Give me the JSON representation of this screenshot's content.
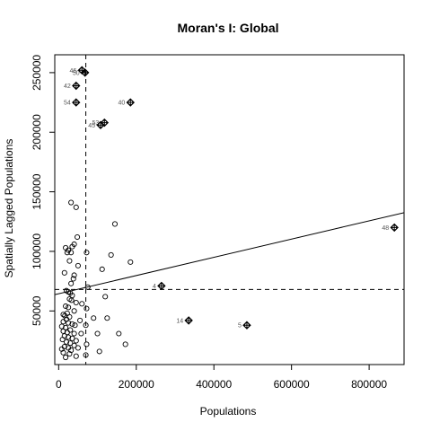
{
  "chart_data": {
    "type": "scatter",
    "title": "Moran's I: Global",
    "xlabel": "Populations",
    "ylabel": "Spatially Lagged Populations",
    "xlim": [
      -10000,
      890000
    ],
    "ylim": [
      5000,
      265000
    ],
    "xticks": [
      0,
      200000,
      400000,
      600000,
      800000
    ],
    "yticks": [
      50000,
      100000,
      150000,
      200000,
      250000
    ],
    "xtick_labels": [
      "0",
      "200000",
      "400000",
      "600000",
      "800000"
    ],
    "ytick_labels": [
      "50000",
      "100000",
      "150000",
      "200000",
      "250000"
    ],
    "mean_x": 70000,
    "mean_y": 68000,
    "regression": {
      "intercept": 64400,
      "slope": 0.0765
    },
    "points": [
      {
        "x": 32000,
        "y": 141000
      },
      {
        "x": 45000,
        "y": 137000
      },
      {
        "x": 145000,
        "y": 123000
      },
      {
        "x": 48000,
        "y": 112000
      },
      {
        "x": 18000,
        "y": 103000
      },
      {
        "x": 25000,
        "y": 101000
      },
      {
        "x": 35000,
        "y": 104000
      },
      {
        "x": 40000,
        "y": 106000
      },
      {
        "x": 22000,
        "y": 99000
      },
      {
        "x": 32000,
        "y": 99000
      },
      {
        "x": 72000,
        "y": 99000
      },
      {
        "x": 135000,
        "y": 97000
      },
      {
        "x": 28000,
        "y": 92000
      },
      {
        "x": 185000,
        "y": 91000
      },
      {
        "x": 50000,
        "y": 88000
      },
      {
        "x": 112000,
        "y": 85000
      },
      {
        "x": 15000,
        "y": 82000
      },
      {
        "x": 40000,
        "y": 80000
      },
      {
        "x": 38000,
        "y": 77000
      },
      {
        "x": 32000,
        "y": 73000
      },
      {
        "x": 75000,
        "y": 70000
      },
      {
        "x": 20000,
        "y": 67000
      },
      {
        "x": 25000,
        "y": 66000
      },
      {
        "x": 30000,
        "y": 65000
      },
      {
        "x": 35000,
        "y": 63000
      },
      {
        "x": 120000,
        "y": 62000
      },
      {
        "x": 28000,
        "y": 60000
      },
      {
        "x": 33000,
        "y": 59000
      },
      {
        "x": 45000,
        "y": 57000
      },
      {
        "x": 60000,
        "y": 56000
      },
      {
        "x": 18000,
        "y": 54000
      },
      {
        "x": 25000,
        "y": 53000
      },
      {
        "x": 72000,
        "y": 52000
      },
      {
        "x": 40000,
        "y": 50000
      },
      {
        "x": 22000,
        "y": 48000
      },
      {
        "x": 12000,
        "y": 47000
      },
      {
        "x": 16000,
        "y": 46000
      },
      {
        "x": 28000,
        "y": 45000
      },
      {
        "x": 90000,
        "y": 44000
      },
      {
        "x": 125000,
        "y": 44000
      },
      {
        "x": 20000,
        "y": 43000
      },
      {
        "x": 55000,
        "y": 42000
      },
      {
        "x": 12000,
        "y": 41000
      },
      {
        "x": 25000,
        "y": 40000
      },
      {
        "x": 35000,
        "y": 39000
      },
      {
        "x": 42000,
        "y": 38000
      },
      {
        "x": 70000,
        "y": 38000
      },
      {
        "x": 8000,
        "y": 37000
      },
      {
        "x": 18000,
        "y": 36000
      },
      {
        "x": 30000,
        "y": 34000
      },
      {
        "x": 12000,
        "y": 33000
      },
      {
        "x": 22000,
        "y": 32000
      },
      {
        "x": 40000,
        "y": 31000
      },
      {
        "x": 58000,
        "y": 31000
      },
      {
        "x": 100000,
        "y": 31000
      },
      {
        "x": 155000,
        "y": 31000
      },
      {
        "x": 15000,
        "y": 29000
      },
      {
        "x": 25000,
        "y": 28000
      },
      {
        "x": 35000,
        "y": 27000
      },
      {
        "x": 10000,
        "y": 26000
      },
      {
        "x": 45000,
        "y": 25000
      },
      {
        "x": 20000,
        "y": 24000
      },
      {
        "x": 30000,
        "y": 23000
      },
      {
        "x": 72000,
        "y": 22000
      },
      {
        "x": 172000,
        "y": 22000
      },
      {
        "x": 40000,
        "y": 21000
      },
      {
        "x": 15000,
        "y": 20000
      },
      {
        "x": 25000,
        "y": 19000
      },
      {
        "x": 50000,
        "y": 19000
      },
      {
        "x": 8000,
        "y": 18000
      },
      {
        "x": 32000,
        "y": 17000
      },
      {
        "x": 105000,
        "y": 16000
      },
      {
        "x": 12000,
        "y": 15000
      },
      {
        "x": 28000,
        "y": 14000
      },
      {
        "x": 70000,
        "y": 13000
      },
      {
        "x": 45000,
        "y": 12000
      },
      {
        "x": 18000,
        "y": 11000
      }
    ],
    "influential_points": [
      {
        "x": 60000,
        "y": 252000,
        "label": "46"
      },
      {
        "x": 68000,
        "y": 250000,
        "label": "50"
      },
      {
        "x": 45000,
        "y": 239000,
        "label": "42"
      },
      {
        "x": 45000,
        "y": 225000,
        "label": "54"
      },
      {
        "x": 185000,
        "y": 225000,
        "label": "40"
      },
      {
        "x": 118000,
        "y": 208000,
        "label": "53"
      },
      {
        "x": 108000,
        "y": 206000,
        "label": "45"
      },
      {
        "x": 865000,
        "y": 120000,
        "label": "48"
      },
      {
        "x": 265000,
        "y": 71000,
        "label": "4"
      },
      {
        "x": 335000,
        "y": 42000,
        "label": "14"
      },
      {
        "x": 485000,
        "y": 38000,
        "label": "5"
      }
    ]
  }
}
